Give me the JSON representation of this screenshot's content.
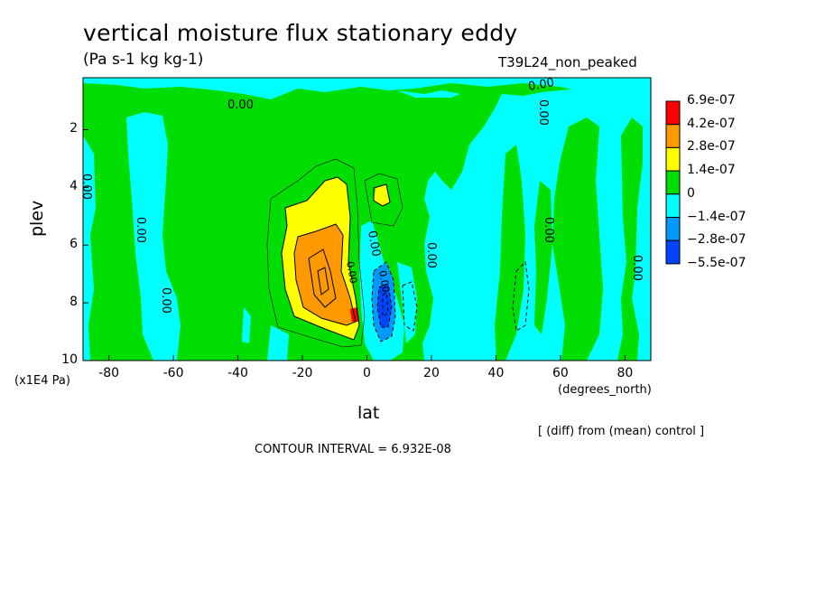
{
  "chart_data": {
    "type": "heatmap",
    "title": "vertical moisture flux stationary eddy",
    "units": "(Pa s-1 kg kg-1)",
    "run_name": "T39L24_non_peaked",
    "xlabel": "lat",
    "x_units": "(degrees_north)",
    "ylabel": "plev",
    "y_units": "(x1E4 Pa)",
    "note": "[ (diff) from (mean) control ]",
    "contour_interval": "CONTOUR INTERVAL = 6.932E-08",
    "xlim": [
      -88,
      88
    ],
    "ylim": [
      10,
      0.2
    ],
    "x_ticks": [
      "-80",
      "-60",
      "-40",
      "-20",
      "0",
      "20",
      "40",
      "60",
      "80"
    ],
    "x_tick_values": [
      -80,
      -60,
      -40,
      -20,
      0,
      20,
      40,
      60,
      80
    ],
    "y_ticks": [
      "2",
      "4",
      "6",
      "8",
      "10"
    ],
    "y_tick_values": [
      2,
      4,
      6,
      8,
      10
    ],
    "contour_labels": [
      "0.00",
      "0.00",
      "0.00",
      "0.00",
      "0.00",
      "0.00",
      "0.00",
      "0.00",
      "0.00",
      "0.00",
      "0.00",
      "0.00"
    ],
    "colorbar": {
      "labels": [
        "6.9e-07",
        "4.2e-07",
        "2.8e-07",
        "1.4e-07",
        "0",
        "−1.4e-07",
        "−2.8e-07",
        "−5.5e-07"
      ],
      "colors": [
        "#ff0000",
        "#ff9900",
        "#ffff00",
        "#00dd00",
        "#00ffff",
        "#0099ff",
        "#0044ff"
      ]
    }
  }
}
